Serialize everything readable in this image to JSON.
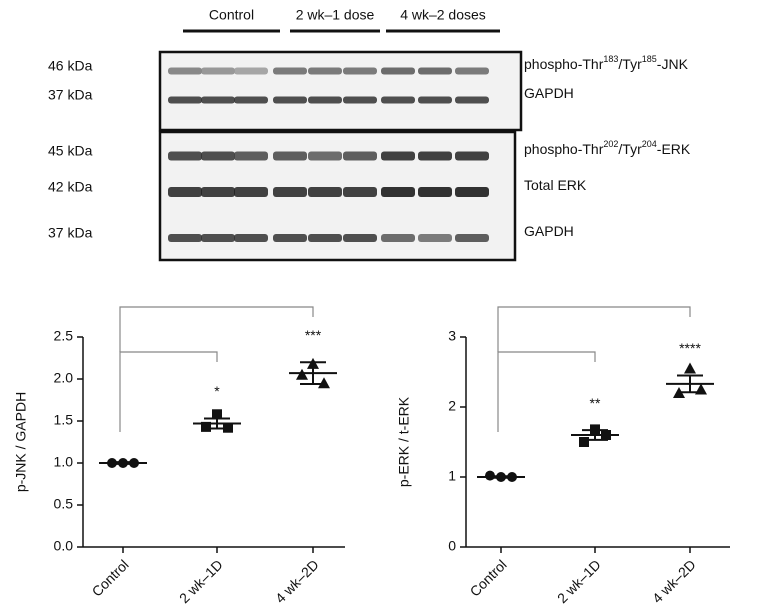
{
  "blot": {
    "groups": [
      "Control",
      "2 wk–1 dose",
      "4 wk–2 doses"
    ],
    "rows": [
      {
        "size": "46 kDa",
        "label": [
          "phospho-Thr",
          "183",
          "/Tyr",
          "185",
          "-JNK"
        ]
      },
      {
        "size": "37 kDa",
        "label": [
          "GAPDH"
        ]
      },
      {
        "size": "45 kDa",
        "label": [
          "phospho-Thr",
          "202",
          "/Tyr",
          "204",
          "-ERK"
        ]
      },
      {
        "size": "42 kDa",
        "label": [
          "Total ERK"
        ]
      },
      {
        "size": "37 kDa",
        "label": [
          "GAPDH"
        ]
      }
    ]
  },
  "chart_data": [
    {
      "type": "dot",
      "ylabel": "p-JNK / GAPDH",
      "categories": [
        "Control",
        "2 wk–1D",
        "4 wk–2D"
      ],
      "markers": [
        "circle",
        "square",
        "triangle"
      ],
      "points": [
        [
          1.0,
          1.0,
          1.0
        ],
        [
          1.43,
          1.58,
          1.42
        ],
        [
          2.05,
          2.18,
          1.95
        ]
      ],
      "means": [
        1.0,
        1.47,
        2.07
      ],
      "errors": [
        0.01,
        0.06,
        0.13
      ],
      "annotations": [
        null,
        "*",
        "***"
      ],
      "ylim": [
        0,
        2.5
      ],
      "yticks": [
        {
          "value": 0,
          "label": "0.0"
        },
        0.5,
        {
          "value": 1,
          "label": "1.0"
        },
        1.5,
        {
          "value": 2,
          "label": "2.0"
        },
        2.5
      ]
    },
    {
      "type": "dot",
      "ylabel": "p-ERK / t-ERK",
      "categories": [
        "Control",
        "2 wk–1D",
        "4 wk–2D"
      ],
      "markers": [
        "circle",
        "square",
        "triangle"
      ],
      "points": [
        [
          1.02,
          1.0,
          1.0
        ],
        [
          1.5,
          1.68,
          1.6
        ],
        [
          2.2,
          2.55,
          2.25
        ]
      ],
      "means": [
        1.0,
        1.6,
        2.33
      ],
      "errors": [
        0.01,
        0.07,
        0.12
      ],
      "annotations": [
        null,
        "**",
        "****"
      ],
      "ylim": [
        0,
        3
      ],
      "yticks": [
        0,
        1,
        2,
        3
      ]
    }
  ]
}
